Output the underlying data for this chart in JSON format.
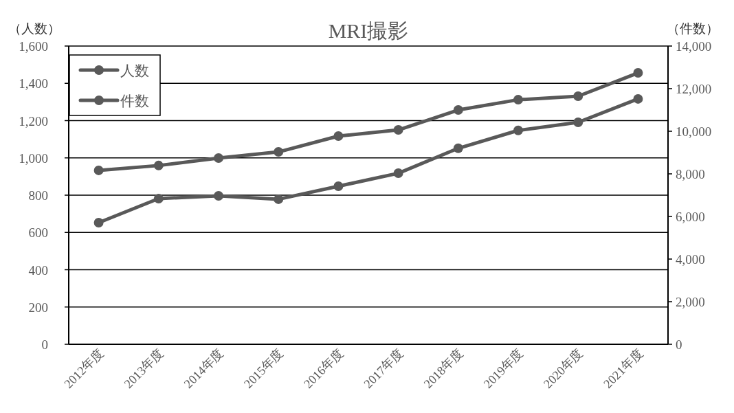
{
  "chart_data": {
    "type": "line",
    "title": "MRI撮影",
    "ylabel": "（人数）",
    "y2label": "（件数）",
    "categories": [
      "2012年度",
      "2013年度",
      "2014年度",
      "2015年度",
      "2016年度",
      "2017年度",
      "2018年度",
      "2019年度",
      "2020年度",
      "2021年度"
    ],
    "series": [
      {
        "name": "人数",
        "color": "#595959",
        "values": [
          933,
          959,
          999,
          1032,
          1117,
          1150,
          1257,
          1312,
          1331,
          1456
        ]
      },
      {
        "name": "件数",
        "color": "#595959",
        "axis": "y2",
        "values": [
          5710,
          6840,
          6970,
          6810,
          7420,
          8030,
          9200,
          10040,
          10420,
          11520
        ]
      }
    ],
    "ylim": [
      0,
      1600
    ],
    "yticks": [
      0,
      200,
      400,
      600,
      800,
      {
        "value": 1000,
        "label": "1,000"
      },
      {
        "value": 1200,
        "label": "1,200"
      },
      {
        "value": 1400,
        "label": "1,400"
      },
      {
        "value": 1600,
        "label": "1,600"
      }
    ],
    "y2lim": [
      0,
      14000
    ],
    "y2ticks": [
      0,
      {
        "value": 2000,
        "label": "2,000"
      },
      {
        "value": 4000,
        "label": "4,000"
      },
      {
        "value": 6000,
        "label": "6,000"
      },
      {
        "value": 8000,
        "label": "8,000"
      },
      {
        "value": 10000,
        "label": "10,000"
      },
      {
        "value": 12000,
        "label": "12,000"
      },
      {
        "value": 14000,
        "label": "14,000"
      }
    ],
    "grid": "y",
    "legend": "top left",
    "marker": "circle",
    "line_style": "solid"
  }
}
